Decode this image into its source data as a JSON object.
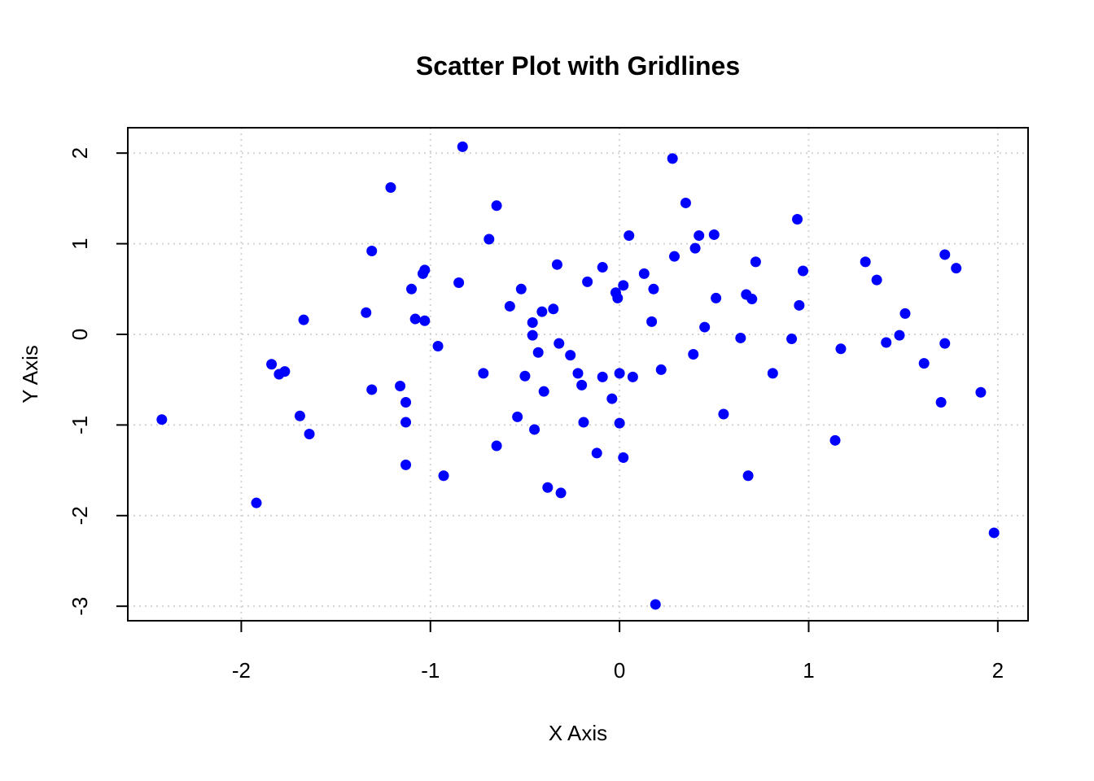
{
  "chart_data": {
    "type": "scatter",
    "title": "Scatter Plot with Gridlines",
    "xlabel": "X Axis",
    "ylabel": "Y Axis",
    "xlim": [
      -2.6,
      2.16
    ],
    "ylim": [
      -3.16,
      2.28
    ],
    "grid": true,
    "marker_color": "#0000ff",
    "xticks": [
      {
        "value": -2,
        "label": "-2"
      },
      {
        "value": -1,
        "label": "-1"
      },
      {
        "value": 0,
        "label": "0"
      },
      {
        "value": 1,
        "label": "1"
      },
      {
        "value": 2,
        "label": "2"
      }
    ],
    "yticks": [
      {
        "value": -3,
        "label": "-3"
      },
      {
        "value": -2,
        "label": "-2"
      },
      {
        "value": -1,
        "label": "-1"
      },
      {
        "value": 0,
        "label": "0"
      },
      {
        "value": 1,
        "label": "1"
      },
      {
        "value": 2,
        "label": "2"
      }
    ],
    "points": [
      [
        -2.42,
        -0.94
      ],
      [
        -1.92,
        -1.86
      ],
      [
        -1.84,
        -0.33
      ],
      [
        -1.8,
        -0.44
      ],
      [
        -1.77,
        -0.41
      ],
      [
        -1.69,
        -0.9
      ],
      [
        -1.67,
        0.16
      ],
      [
        -1.64,
        -1.1
      ],
      [
        -1.34,
        0.24
      ],
      [
        -1.31,
        0.92
      ],
      [
        -1.31,
        -0.61
      ],
      [
        -1.21,
        1.62
      ],
      [
        -1.16,
        -0.57
      ],
      [
        -1.13,
        -0.75
      ],
      [
        -1.13,
        -0.97
      ],
      [
        -1.13,
        -1.44
      ],
      [
        -1.1,
        0.5
      ],
      [
        -1.08,
        0.17
      ],
      [
        -1.04,
        0.67
      ],
      [
        -1.03,
        0.71
      ],
      [
        -1.03,
        0.15
      ],
      [
        -0.96,
        -0.13
      ],
      [
        -0.93,
        -1.56
      ],
      [
        -0.85,
        0.57
      ],
      [
        -0.83,
        2.07
      ],
      [
        -0.72,
        -0.43
      ],
      [
        -0.69,
        1.05
      ],
      [
        -0.65,
        1.42
      ],
      [
        -0.65,
        -1.23
      ],
      [
        -0.58,
        0.31
      ],
      [
        -0.54,
        -0.91
      ],
      [
        -0.52,
        0.5
      ],
      [
        -0.5,
        -0.46
      ],
      [
        -0.46,
        0.13
      ],
      [
        -0.46,
        -0.01
      ],
      [
        -0.45,
        -1.05
      ],
      [
        -0.43,
        -0.2
      ],
      [
        -0.41,
        0.25
      ],
      [
        -0.4,
        -0.63
      ],
      [
        -0.38,
        -1.69
      ],
      [
        -0.35,
        0.28
      ],
      [
        -0.33,
        0.77
      ],
      [
        -0.32,
        -0.1
      ],
      [
        -0.31,
        -1.75
      ],
      [
        -0.26,
        -0.23
      ],
      [
        -0.22,
        -0.43
      ],
      [
        -0.2,
        -0.56
      ],
      [
        -0.19,
        -0.97
      ],
      [
        -0.17,
        0.58
      ],
      [
        -0.12,
        -1.31
      ],
      [
        -0.09,
        0.74
      ],
      [
        -0.09,
        -0.47
      ],
      [
        -0.04,
        -0.71
      ],
      [
        -0.02,
        0.46
      ],
      [
        -0.01,
        0.4
      ],
      [
        -0.0,
        -0.43
      ],
      [
        -0.0,
        -0.98
      ],
      [
        0.02,
        0.54
      ],
      [
        0.02,
        -1.36
      ],
      [
        0.05,
        1.09
      ],
      [
        0.07,
        -0.47
      ],
      [
        0.13,
        0.67
      ],
      [
        0.17,
        0.14
      ],
      [
        0.18,
        0.5
      ],
      [
        0.19,
        -2.98
      ],
      [
        0.22,
        -0.39
      ],
      [
        0.28,
        1.94
      ],
      [
        0.29,
        0.86
      ],
      [
        0.35,
        1.45
      ],
      [
        0.39,
        -0.22
      ],
      [
        0.4,
        0.95
      ],
      [
        0.42,
        1.09
      ],
      [
        0.45,
        0.08
      ],
      [
        0.5,
        1.1
      ],
      [
        0.51,
        0.4
      ],
      [
        0.55,
        -0.88
      ],
      [
        0.64,
        -0.04
      ],
      [
        0.67,
        0.44
      ],
      [
        0.68,
        -1.56
      ],
      [
        0.7,
        0.39
      ],
      [
        0.72,
        0.8
      ],
      [
        0.81,
        -0.43
      ],
      [
        0.91,
        -0.05
      ],
      [
        0.94,
        1.27
      ],
      [
        0.95,
        0.32
      ],
      [
        0.97,
        0.7
      ],
      [
        1.14,
        -1.17
      ],
      [
        1.17,
        -0.16
      ],
      [
        1.3,
        0.8
      ],
      [
        1.36,
        0.6
      ],
      [
        1.41,
        -0.09
      ],
      [
        1.48,
        -0.01
      ],
      [
        1.51,
        0.23
      ],
      [
        1.61,
        -0.32
      ],
      [
        1.7,
        -0.75
      ],
      [
        1.72,
        0.88
      ],
      [
        1.72,
        -0.1
      ],
      [
        1.78,
        0.73
      ],
      [
        1.91,
        -0.64
      ],
      [
        1.98,
        -2.19
      ]
    ]
  }
}
